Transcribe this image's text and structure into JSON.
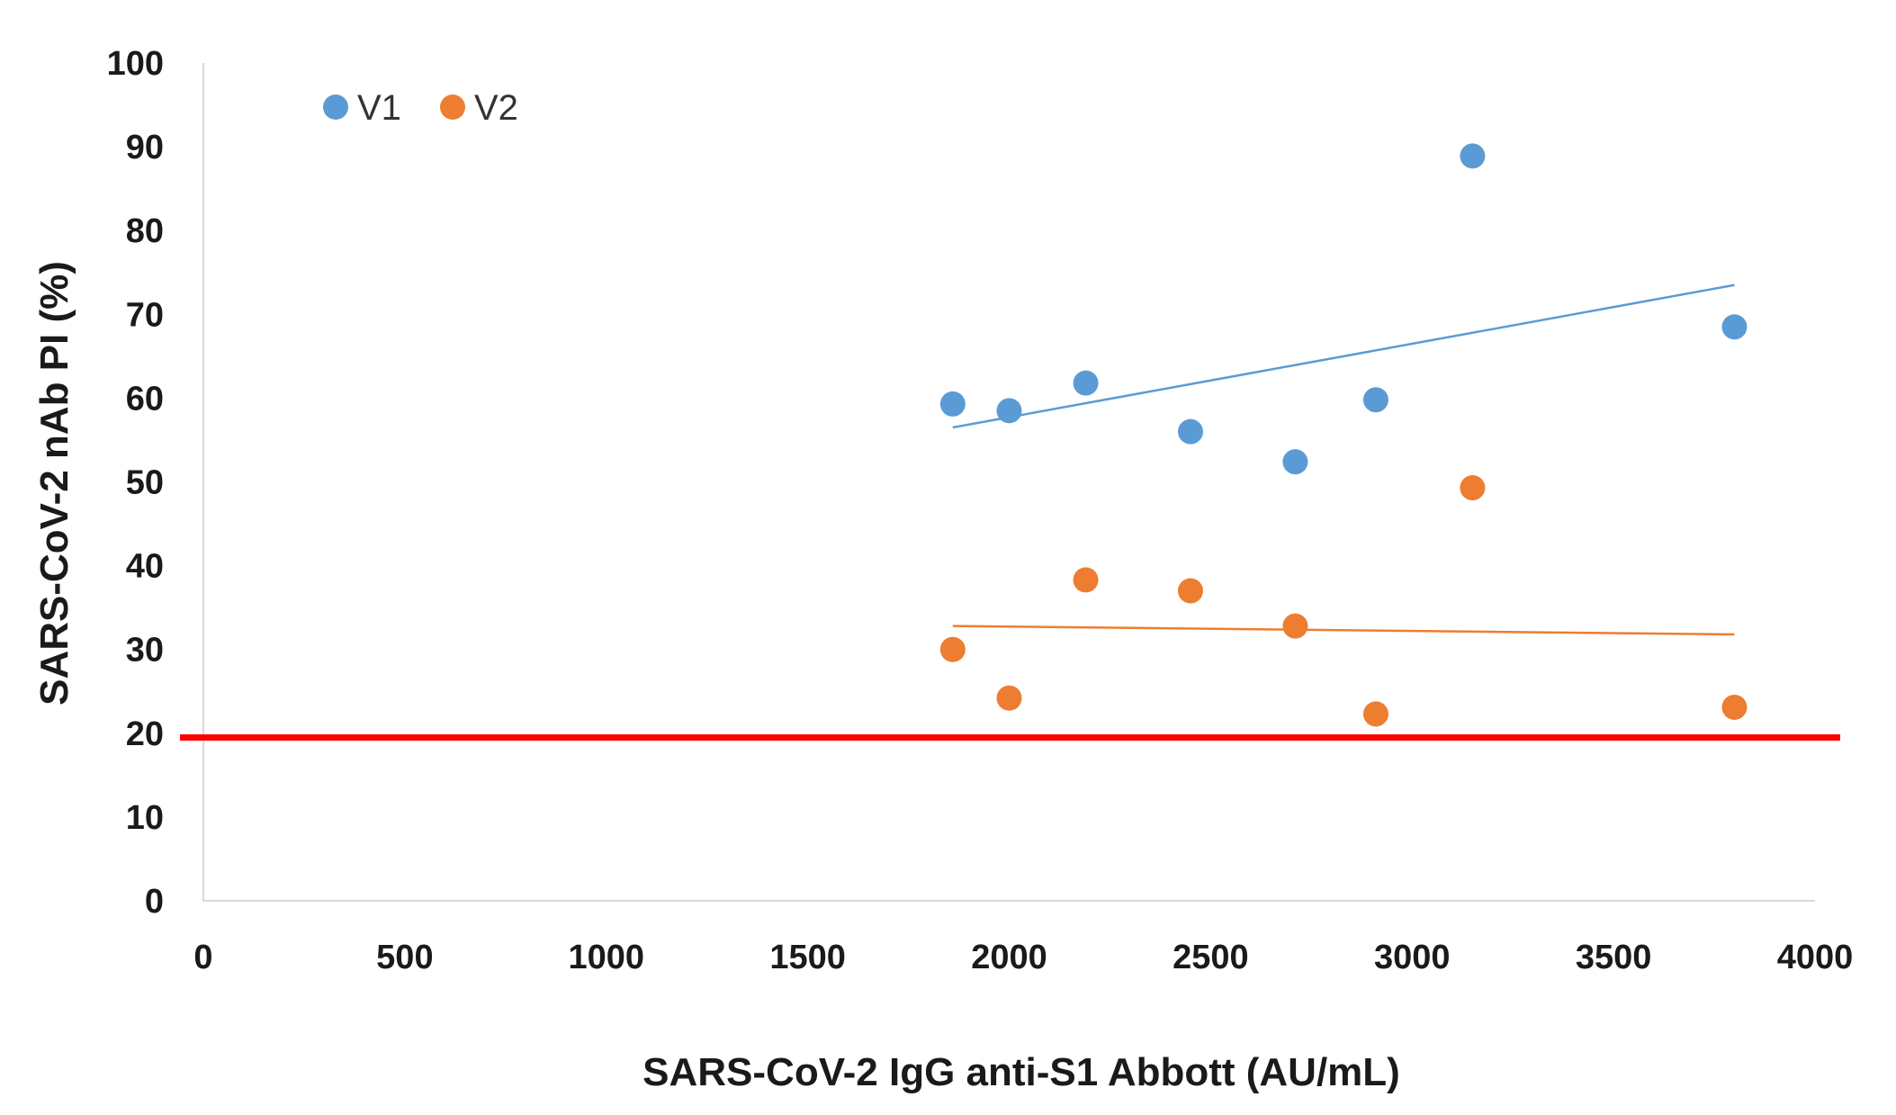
{
  "chart_data": {
    "type": "scatter",
    "title": "",
    "xlabel": "SARS-CoV-2 IgG anti-S1 Abbott (AU/mL)",
    "ylabel": "SARS-CoV-2 nAb PI (%)",
    "xlim": [
      0,
      4000
    ],
    "ylim": [
      0,
      100
    ],
    "xticks": [
      "0",
      "500",
      "1000",
      "1500",
      "2000",
      "2500",
      "3000",
      "3500",
      "4000"
    ],
    "yticks": [
      "0",
      "10",
      "20",
      "30",
      "40",
      "50",
      "60",
      "70",
      "80",
      "90",
      "100"
    ],
    "legend_position": "top-left",
    "series": [
      {
        "name": "V1",
        "color": "#5b9bd5",
        "points": [
          {
            "x": 1860,
            "y": 59.3
          },
          {
            "x": 2000,
            "y": 58.5
          },
          {
            "x": 2190,
            "y": 61.8
          },
          {
            "x": 2450,
            "y": 56.0
          },
          {
            "x": 2710,
            "y": 52.4
          },
          {
            "x": 2910,
            "y": 59.8
          },
          {
            "x": 3150,
            "y": 88.9
          },
          {
            "x": 3800,
            "y": 68.5
          }
        ],
        "trendline": {
          "x_start": 1860,
          "y_start": 56.5,
          "x_end": 3800,
          "y_end": 73.5
        }
      },
      {
        "name": "V2",
        "color": "#ed7d31",
        "points": [
          {
            "x": 1860,
            "y": 30.0
          },
          {
            "x": 2000,
            "y": 24.2
          },
          {
            "x": 2190,
            "y": 38.3
          },
          {
            "x": 2450,
            "y": 37.0
          },
          {
            "x": 2710,
            "y": 32.8
          },
          {
            "x": 2910,
            "y": 22.3
          },
          {
            "x": 3150,
            "y": 49.3
          },
          {
            "x": 3800,
            "y": 23.1
          }
        ],
        "trendline": {
          "x_start": 1860,
          "y_start": 32.8,
          "x_end": 3800,
          "y_end": 31.8
        }
      }
    ],
    "reference_line": {
      "y": 19.5,
      "color": "#ff0000"
    }
  }
}
